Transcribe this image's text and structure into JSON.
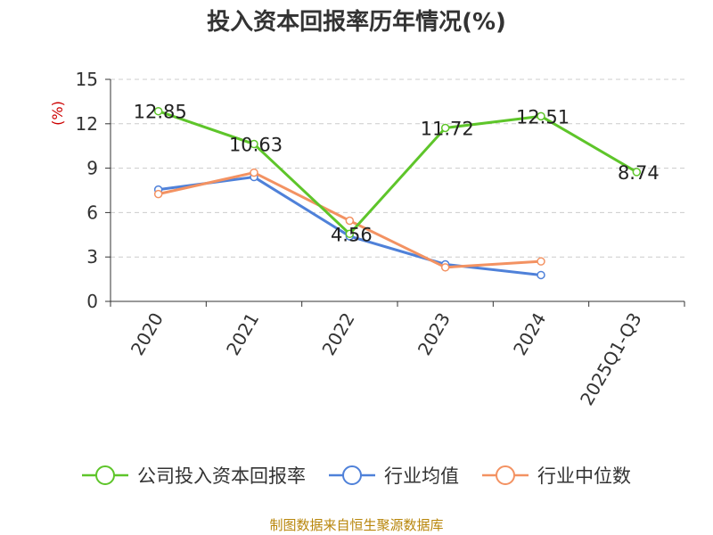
{
  "title": "投入资本回报率历年情况(%)",
  "source": "制图数据来自恒生聚源数据库",
  "chart_data": {
    "type": "line",
    "title": "投入资本回报率历年情况(%)",
    "ylabel": "(%)",
    "xlabel": "",
    "categories": [
      "2020",
      "2021",
      "2022",
      "2023",
      "2024",
      "2025Q1-Q3"
    ],
    "ylim": [
      0,
      15
    ],
    "yticks": [
      0,
      3,
      6,
      9,
      12,
      15
    ],
    "grid": true,
    "legend_position": "bottom",
    "series": [
      {
        "name": "公司投入资本回报率",
        "color": "#5ec52a",
        "values": [
          12.85,
          10.63,
          4.56,
          11.72,
          12.51,
          8.74
        ],
        "labels": [
          "12.85",
          "10.63",
          "4.56",
          "11.72",
          "12.51",
          "8.74"
        ]
      },
      {
        "name": "行业均值",
        "color": "#4f81d9",
        "values": [
          7.55,
          8.4,
          4.4,
          2.5,
          1.78,
          null
        ]
      },
      {
        "name": "行业中位数",
        "color": "#f39262",
        "values": [
          7.25,
          8.7,
          5.45,
          2.3,
          2.7,
          null
        ]
      }
    ]
  }
}
